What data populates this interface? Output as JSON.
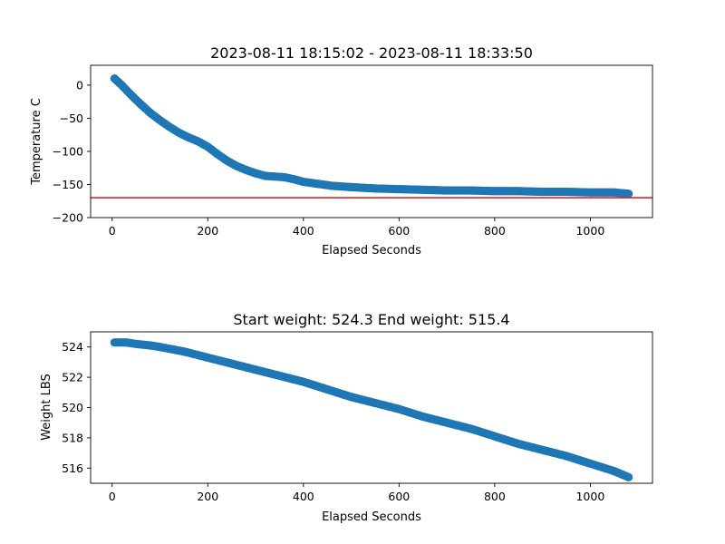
{
  "chart_data": [
    {
      "type": "scatter",
      "title": "2023-08-11 18:15:02 - 2023-08-11 18:33:50",
      "xlabel": "Elapsed Seconds",
      "ylabel": "Temperature C",
      "xlim": [
        -45,
        1130
      ],
      "ylim": [
        -200,
        30
      ],
      "xticks": [
        0,
        200,
        400,
        600,
        800,
        1000
      ],
      "yticks": [
        0,
        -50,
        -100,
        -150,
        -200
      ],
      "marker_color": "#1f77b4",
      "reference_line": {
        "y": -170,
        "color": "#d62728"
      },
      "series": [
        {
          "x": [
            5,
            20,
            40,
            60,
            80,
            100,
            120,
            140,
            160,
            180,
            200,
            220,
            240,
            260,
            280,
            300,
            320,
            340,
            360,
            380,
            400,
            430,
            460,
            500,
            550,
            600,
            650,
            700,
            750,
            800,
            850,
            900,
            950,
            1000,
            1050,
            1080
          ],
          "y": [
            10,
            0,
            -15,
            -29,
            -42,
            -53,
            -63,
            -72,
            -79,
            -85,
            -93,
            -104,
            -114,
            -122,
            -128,
            -133,
            -137,
            -138,
            -139,
            -142,
            -146,
            -149,
            -152,
            -154,
            -156,
            -157,
            -158,
            -159,
            -159,
            -160,
            -160,
            -161,
            -161,
            -162,
            -162,
            -164
          ]
        }
      ]
    },
    {
      "type": "scatter",
      "title": "Start weight: 524.3 End weight: 515.4",
      "xlabel": "Elapsed Seconds",
      "ylabel": "Weight LBS",
      "xlim": [
        -45,
        1130
      ],
      "ylim": [
        515.0,
        525.0
      ],
      "xticks": [
        0,
        200,
        400,
        600,
        800,
        1000
      ],
      "yticks": [
        516,
        518,
        520,
        522,
        524
      ],
      "marker_color": "#1f77b4",
      "series": [
        {
          "x": [
            5,
            30,
            50,
            80,
            100,
            150,
            200,
            250,
            300,
            350,
            400,
            450,
            500,
            550,
            600,
            650,
            700,
            750,
            800,
            850,
            900,
            950,
            1000,
            1050,
            1080
          ],
          "y": [
            524.3,
            524.3,
            524.2,
            524.1,
            524.0,
            523.7,
            523.3,
            522.9,
            522.5,
            522.1,
            521.7,
            521.2,
            520.7,
            520.3,
            519.9,
            519.4,
            519.0,
            518.6,
            518.1,
            517.6,
            517.2,
            516.8,
            516.3,
            515.8,
            515.4
          ]
        }
      ]
    }
  ]
}
